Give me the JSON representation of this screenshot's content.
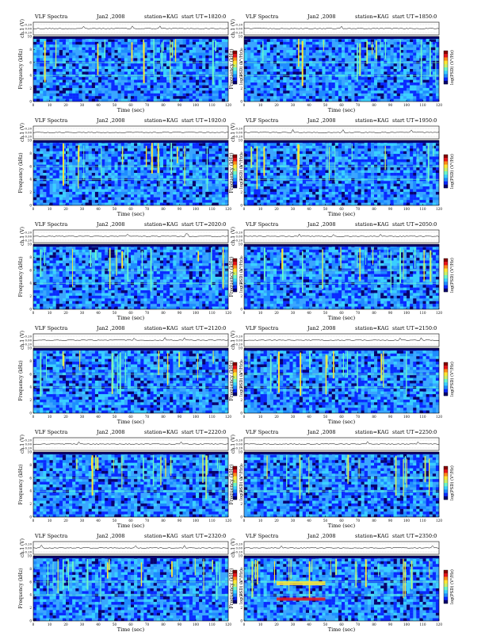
{
  "header": {
    "prefix": "VLF Spectra",
    "date": "Jan2 ,2008",
    "station": "station=KAG",
    "start_label": "start UT"
  },
  "axis_labels": {
    "ch": "ch.1 (V)",
    "freq": "Frequency (kHz)",
    "time": "Time (sec)",
    "colorbar": "log(PSD) (V²/Hz)"
  },
  "panels": [
    {
      "start_ut": "=1820:0"
    },
    {
      "start_ut": "=1850:0"
    },
    {
      "start_ut": "=1920:0"
    },
    {
      "start_ut": "=1950:0"
    },
    {
      "start_ut": "=2020:0"
    },
    {
      "start_ut": "=2050:0"
    },
    {
      "start_ut": "=2120:0"
    },
    {
      "start_ut": "=2150:0"
    },
    {
      "start_ut": "=2220:0"
    },
    {
      "start_ut": "=2250:0"
    },
    {
      "start_ut": "=2320:0"
    },
    {
      "start_ut": "=2350:0"
    }
  ],
  "chart_data": {
    "type": "heatmap",
    "layout": "6 rows x 2 columns of VLF spectrograms",
    "x": {
      "ticks": [
        0,
        10,
        20,
        30,
        40,
        50,
        60,
        70,
        80,
        90,
        100,
        110,
        120
      ],
      "range": [
        0,
        120
      ],
      "unit": "sec"
    },
    "freq_axis": {
      "ticks": [
        0,
        2,
        4,
        6,
        8,
        10
      ],
      "range": [
        0,
        10
      ],
      "unit": "kHz"
    },
    "ch_axis": {
      "ticks": [
        "0.20",
        "0.00",
        "-0.20"
      ],
      "range": [
        -0.2,
        0.2
      ],
      "unit": "V"
    },
    "colormap": [
      "#08006e",
      "#0a2aff",
      "#1e8cff",
      "#3ad0ff",
      "#6cf5c8",
      "#c8f06a",
      "#ffe633",
      "#ff8a1a",
      "#e8141a",
      "#8a0000"
    ],
    "background_color": "#3aa6ff",
    "waveform_color": "#000000"
  }
}
